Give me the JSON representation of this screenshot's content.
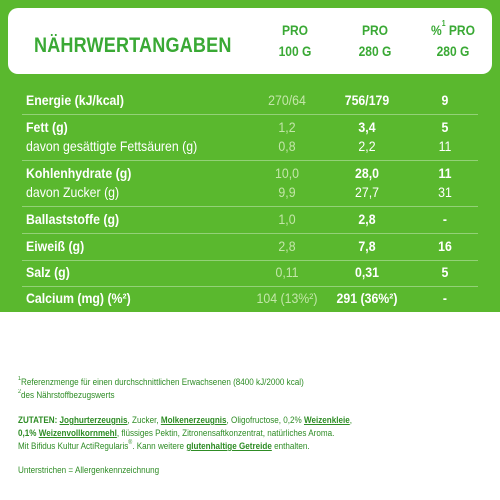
{
  "header": {
    "title": "NÄHRWERTANGABEN",
    "col1": {
      "line1": "PRO",
      "line2": "100 G"
    },
    "col2": {
      "line1": "PRO",
      "line2": "280 G"
    },
    "col3": {
      "prefix": "%",
      "sup": "1",
      "line1_rest": " PRO",
      "line2": "280 G"
    }
  },
  "rows": [
    {
      "label": "Energie (kJ/kcal)",
      "per100": "270/64",
      "per280": "756/179",
      "ri": "9"
    },
    {
      "label": "Fett (g)",
      "per100": "1,2",
      "per280": "3,4",
      "ri": "5"
    },
    {
      "label": "davon gesättigte Fettsäuren (g)",
      "per100": "0,8",
      "per280": "2,2",
      "ri": "11"
    },
    {
      "label": "Kohlenhydrate (g)",
      "per100": "10,0",
      "per280": "28,0",
      "ri": "11"
    },
    {
      "label": "davon Zucker (g)",
      "per100": "9,9",
      "per280": "27,7",
      "ri": "31"
    },
    {
      "label": "Ballaststoffe (g)",
      "per100": "1,0",
      "per280": "2,8",
      "ri": "-"
    },
    {
      "label": "Eiweiß (g)",
      "per100": "2,8",
      "per280": "7,8",
      "ri": "16"
    },
    {
      "label": "Salz (g)",
      "per100": "0,11",
      "per280": "0,31",
      "ri": "5"
    },
    {
      "label": "Calcium (mg) (%²)",
      "per100": "104 (13%²)",
      "per280": "291 (36%²)",
      "ri": "-"
    }
  ],
  "footnotes": {
    "f1_sup": "1",
    "f1": "Referenzmenge für einen durchschnittlichen Erwachsenen (8400 kJ/2000 kcal)",
    "f2_sup": "2",
    "f2": "des Nährstoffbezugswerts"
  },
  "ingredients": {
    "label": "ZUTATEN:",
    "p1": "Joghurterzeugnis",
    "p2": ", Zucker, ",
    "p3": "Molkenerzeugnis",
    "p4": ", Oligofructose, 0,2% ",
    "p5": "Weizenkleie",
    "p6": ",",
    "p7": "0,1% ",
    "p8": "Weizenvollkornmehl",
    "p9": ", flüssiges Pektin, Zitronensaftkonzentrat, natürliches Aroma.",
    "p10": "Mit Bifidus Kultur ActiRegularis",
    "p10_sup": "®",
    "p11": ". Kann weitere ",
    "p12": "glutenhaltige Getreide",
    "p13": " enthalten."
  },
  "allergen_note": "Unterstrichen = Allergenkennzeichnung",
  "colors": {
    "green_background": "#5ab82e",
    "title_green": "#3aa935",
    "faded_value": "#c3e6a9",
    "footnote_green": "#2e8c25"
  }
}
